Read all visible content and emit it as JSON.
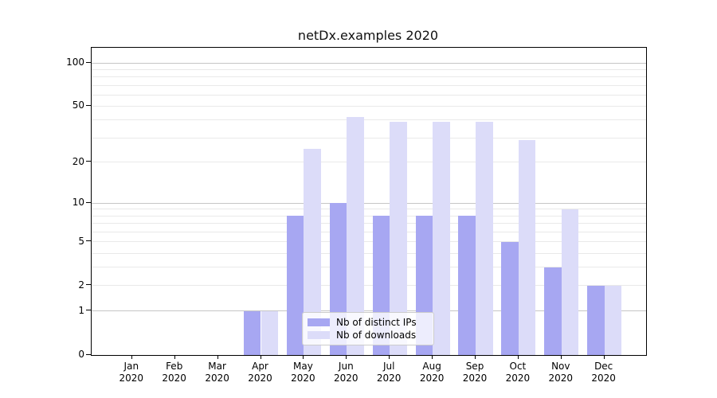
{
  "title": "netDx.examples 2020",
  "colors": {
    "distinct_ips": "#a7a7f2",
    "downloads": "#dcdcf9",
    "grid_major": "#c6c6c6",
    "grid_minor": "#e9e9e9",
    "axis": "#000000",
    "legend_border": "#cccccc"
  },
  "legend": {
    "items": [
      {
        "key": "distinct_ips",
        "label": "Nb of distinct IPs"
      },
      {
        "key": "downloads",
        "label": "Nb of downloads"
      }
    ]
  },
  "chart_data": {
    "type": "bar",
    "title": "netDx.examples 2020",
    "categories": [
      "Jan",
      "Feb",
      "Mar",
      "Apr",
      "May",
      "Jun",
      "Jul",
      "Aug",
      "Sep",
      "Oct",
      "Nov",
      "Dec"
    ],
    "year": "2020",
    "series": [
      {
        "key": "distinct_ips",
        "name": "Nb of distinct IPs",
        "values": [
          0,
          0,
          0,
          1,
          8,
          10,
          8,
          8,
          8,
          5,
          3,
          2
        ]
      },
      {
        "key": "downloads",
        "name": "Nb of downloads",
        "values": [
          0,
          0,
          0,
          1,
          25,
          42,
          39,
          39,
          39,
          29,
          9,
          2
        ]
      }
    ],
    "xlabel": "",
    "ylabel": "",
    "yscale": "log1p",
    "ylim": [
      0,
      127.5
    ],
    "yticks": [
      0,
      1,
      2,
      5,
      10,
      20,
      50,
      100
    ],
    "grid": "y",
    "grid_major_lines": [
      1,
      10,
      100
    ],
    "grid_minor_lines": [
      2,
      3,
      4,
      5,
      6,
      7,
      8,
      9,
      20,
      30,
      40,
      50,
      60,
      70,
      80,
      90
    ],
    "legend_position": "lower center inside"
  }
}
